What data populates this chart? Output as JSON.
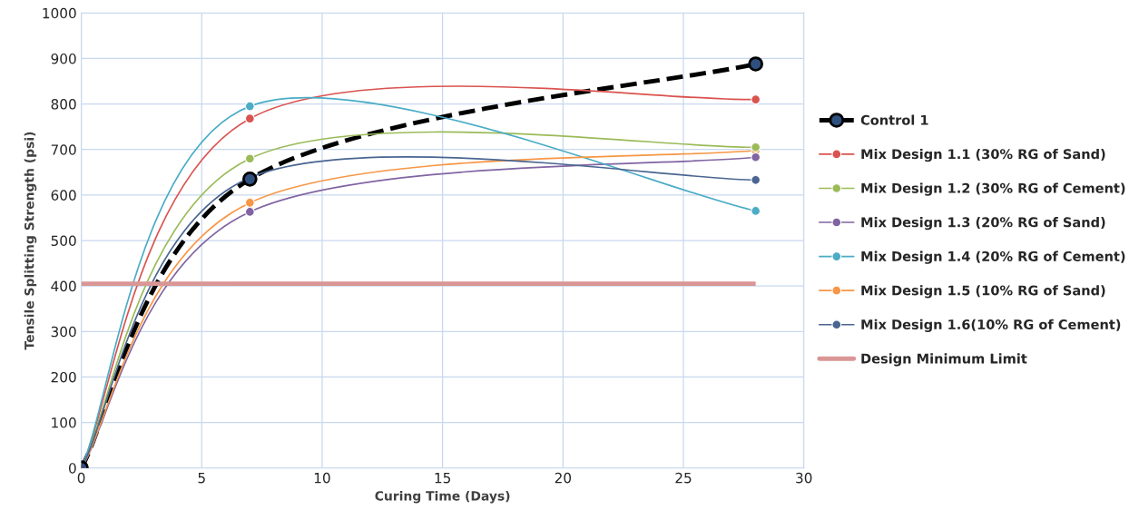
{
  "chart_data": {
    "type": "line",
    "xlabel": "Curing Time (Days)",
    "ylabel": "Tensile Splitting Strength (psi)",
    "x": [
      0,
      7,
      28
    ],
    "xlim": [
      0,
      30
    ],
    "xticks": [
      0,
      5,
      10,
      15,
      20,
      25,
      30
    ],
    "ylim": [
      0,
      1000
    ],
    "yticks": [
      0,
      100,
      200,
      300,
      400,
      500,
      600,
      700,
      800,
      900,
      1000
    ],
    "grid": true,
    "legend": "right",
    "marker": "circle",
    "series": [
      {
        "name": "Control 1",
        "color": "#000000",
        "values": [
          0,
          635,
          888
        ],
        "line_style": "dashed"
      },
      {
        "name": "Mix Design 1.1 (30% RG of Sand)",
        "color": "#d9534f",
        "values": [
          0,
          768,
          810
        ]
      },
      {
        "name": "Mix Design 1.2 (30% RG of Cement)",
        "color": "#9bbb59",
        "values": [
          0,
          680,
          705
        ]
      },
      {
        "name": "Mix Design 1.3 (20% RG of Sand)",
        "color": "#8064a2",
        "values": [
          0,
          563,
          683
        ]
      },
      {
        "name": "Mix Design 1.4 (20% RG of Cement)",
        "color": "#4bacc6",
        "values": [
          0,
          795,
          565
        ]
      },
      {
        "name": "Mix Design 1.5 (10% RG of Sand)",
        "color": "#f79646",
        "values": [
          0,
          583,
          698
        ]
      },
      {
        "name": "Mix Design 1.6(10% RG of Cement)",
        "color": "#4a6591",
        "values": [
          0,
          638,
          633
        ]
      },
      {
        "name": "Design Minimum Limit",
        "color": "#d99694",
        "x": [
          0,
          28
        ],
        "values": [
          405,
          405
        ],
        "marker": "none"
      }
    ]
  }
}
